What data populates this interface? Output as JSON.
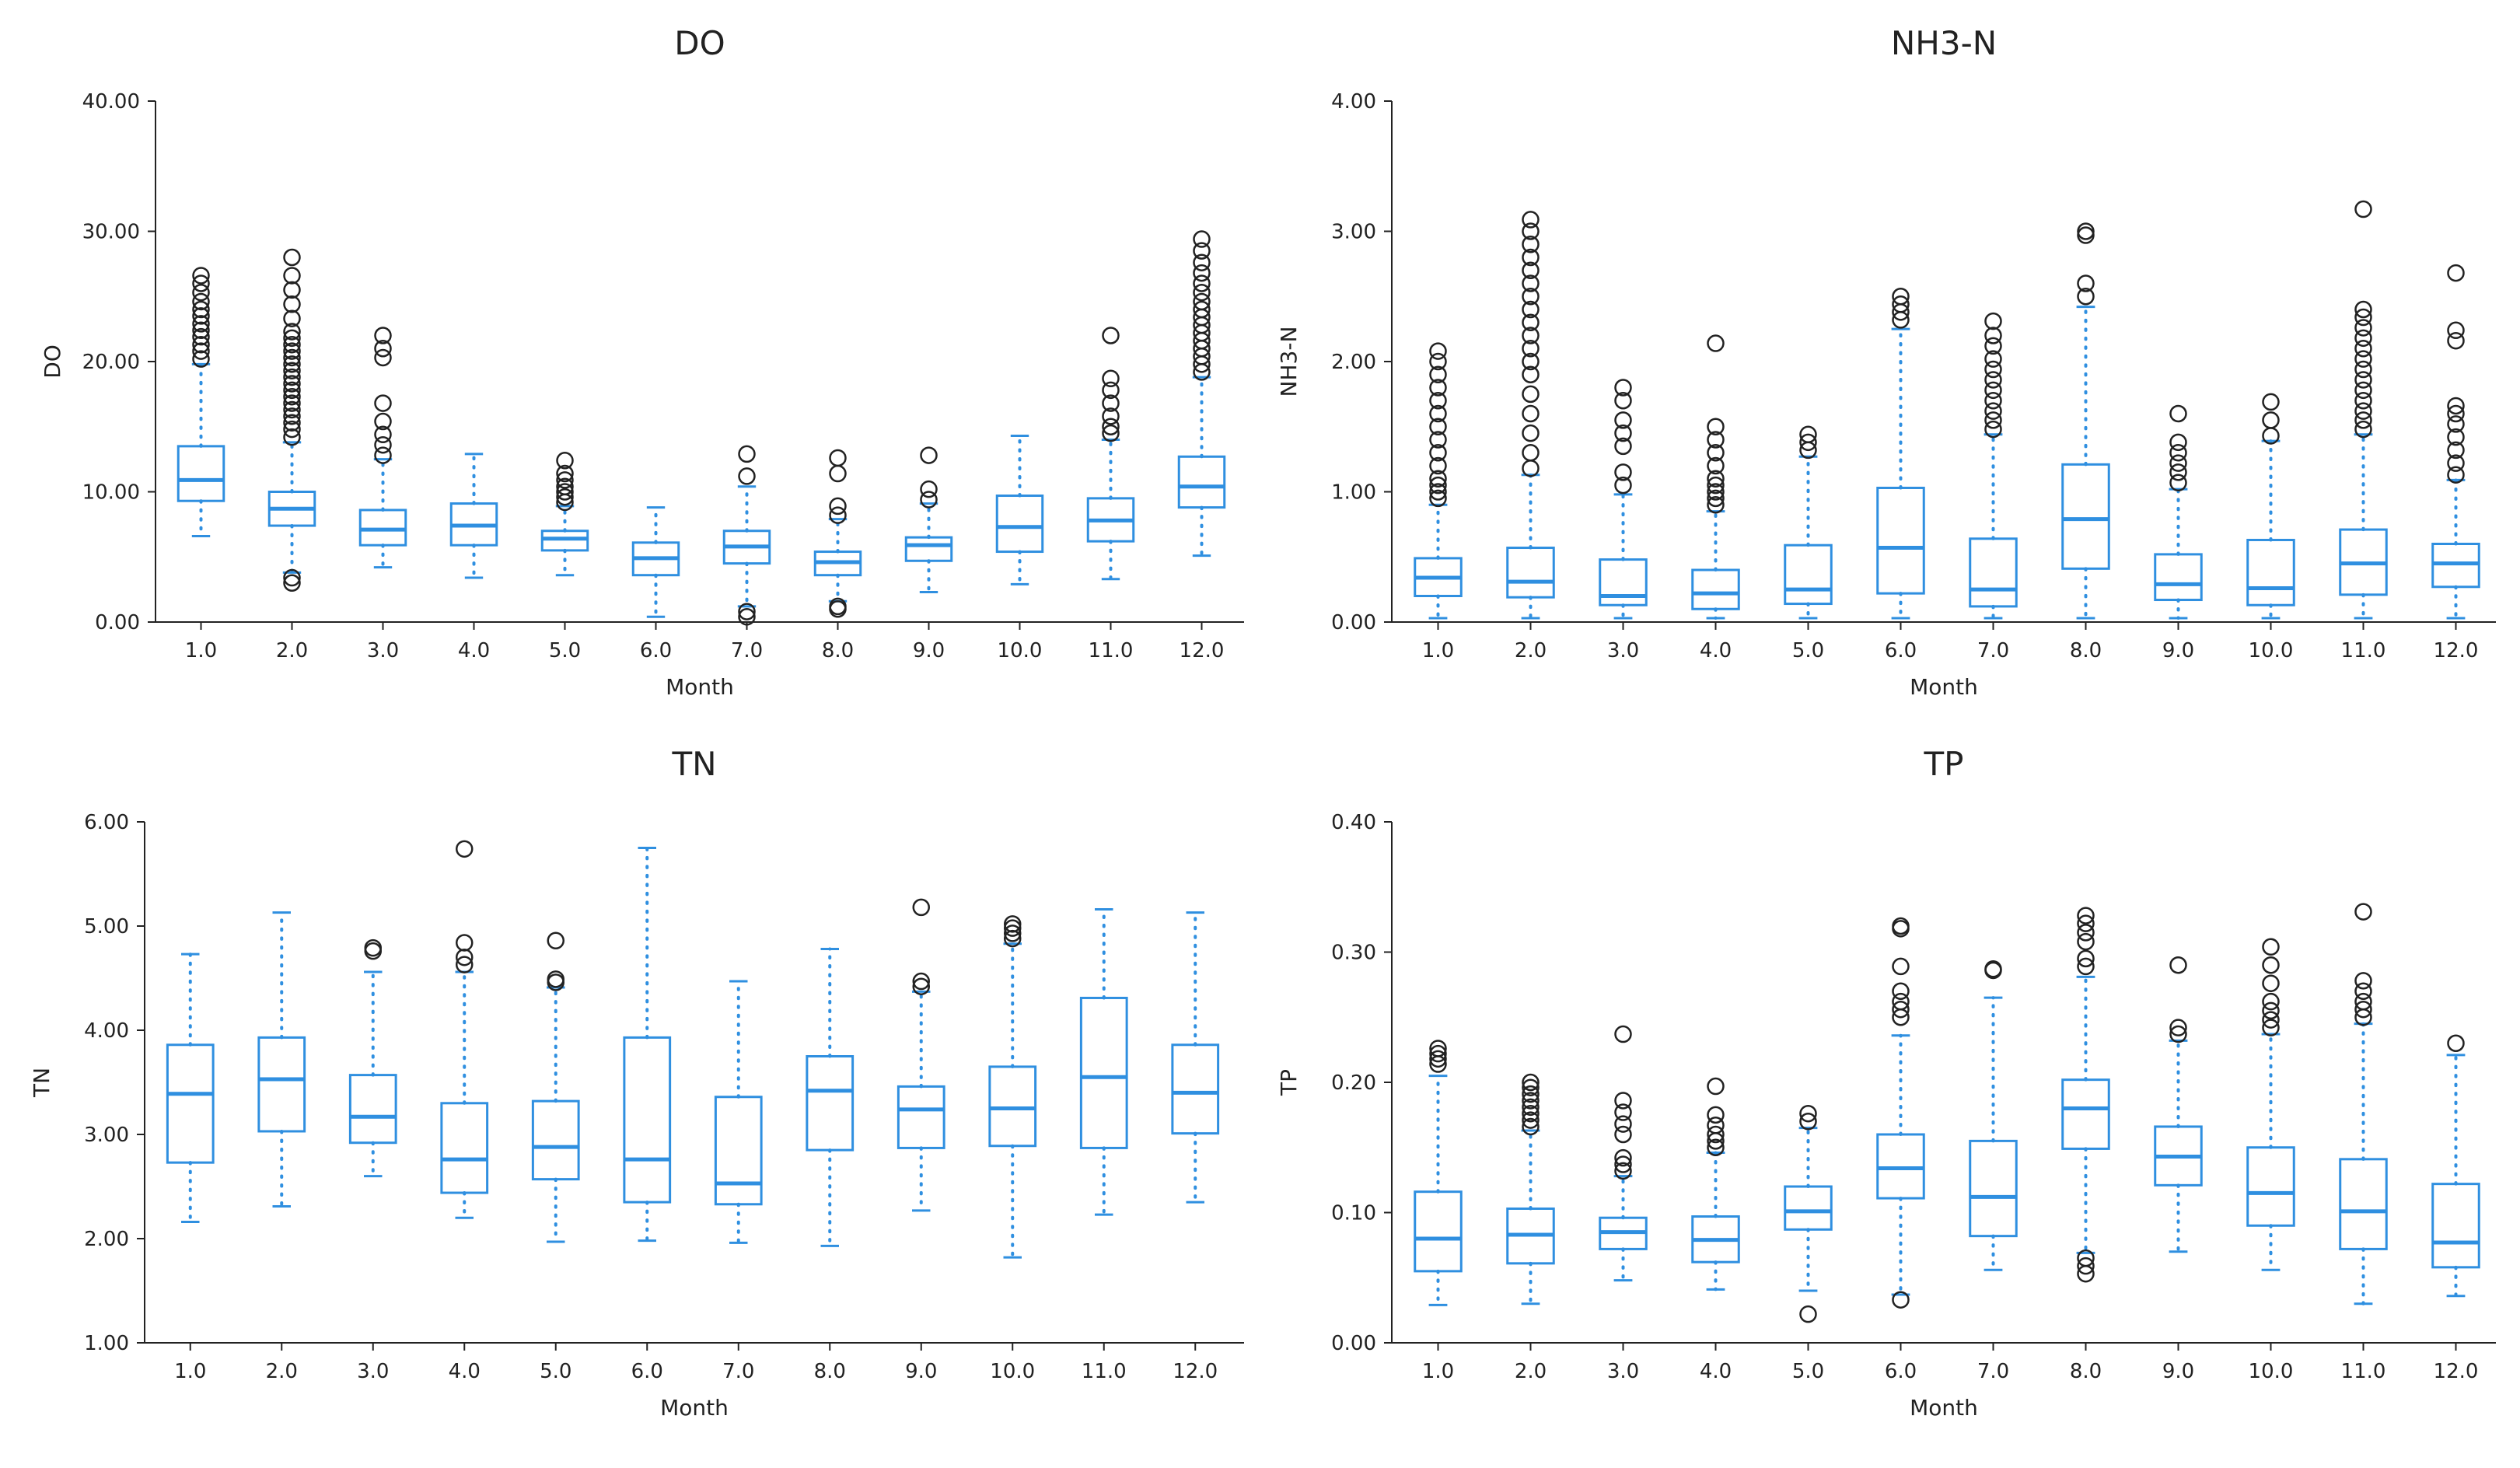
{
  "colors": {
    "box": "#2f8fe0",
    "flier": "#222222",
    "axis": "#222222",
    "background": "#ffffff"
  },
  "chart_data": [
    {
      "type": "box",
      "title": "DO",
      "xlabel": "Month",
      "ylabel": "DO",
      "categories": [
        "1.0",
        "2.0",
        "3.0",
        "4.0",
        "5.0",
        "6.0",
        "7.0",
        "8.0",
        "9.0",
        "10.0",
        "11.0",
        "12.0"
      ],
      "ylim": [
        0,
        40
      ],
      "yticks": [
        "0.00",
        "10.00",
        "20.00",
        "30.00",
        "40.00"
      ],
      "boxes": [
        {
          "whislo": 6.6,
          "q1": 9.3,
          "med": 10.9,
          "q3": 13.5,
          "whishi": 19.8,
          "fliers": [
            20.2,
            20.8,
            21.3,
            21.9,
            22.4,
            22.9,
            23.5,
            24.0,
            24.6,
            25.3,
            26.0,
            26.6
          ]
        },
        {
          "whislo": 3.8,
          "q1": 7.4,
          "med": 8.7,
          "q3": 10.0,
          "whishi": 13.8,
          "fliers": [
            3.0,
            3.4,
            14.2,
            14.8,
            15.3,
            15.8,
            16.3,
            16.8,
            17.3,
            17.8,
            18.3,
            18.8,
            19.3,
            19.8,
            20.3,
            20.8,
            21.3,
            21.8,
            22.3,
            23.3,
            24.4,
            25.5,
            26.6,
            28.0
          ]
        },
        {
          "whislo": 4.2,
          "q1": 5.9,
          "med": 7.1,
          "q3": 8.6,
          "whishi": 12.5,
          "fliers": [
            12.8,
            13.6,
            14.4,
            15.4,
            16.8,
            20.3,
            21.0,
            22.0
          ]
        },
        {
          "whislo": 3.4,
          "q1": 5.9,
          "med": 7.4,
          "q3": 9.1,
          "whishi": 12.9,
          "fliers": []
        },
        {
          "whislo": 3.6,
          "q1": 5.5,
          "med": 6.4,
          "q3": 7.0,
          "whishi": 8.9,
          "fliers": [
            9.2,
            9.6,
            10.0,
            10.4,
            10.9,
            11.4,
            12.4
          ]
        },
        {
          "whislo": 0.4,
          "q1": 3.6,
          "med": 4.9,
          "q3": 6.1,
          "whishi": 8.8,
          "fliers": []
        },
        {
          "whislo": 1.2,
          "q1": 4.5,
          "med": 5.8,
          "q3": 7.0,
          "whishi": 10.4,
          "fliers": [
            0.4,
            0.8,
            11.2,
            12.9
          ]
        },
        {
          "whislo": 1.6,
          "q1": 3.6,
          "med": 4.6,
          "q3": 5.4,
          "whishi": 7.9,
          "fliers": [
            1.0,
            1.2,
            8.2,
            8.9,
            11.4,
            12.6
          ]
        },
        {
          "whislo": 2.3,
          "q1": 4.7,
          "med": 5.9,
          "q3": 6.5,
          "whishi": 9.1,
          "fliers": [
            9.4,
            10.2,
            12.8
          ]
        },
        {
          "whislo": 2.9,
          "q1": 5.4,
          "med": 7.3,
          "q3": 9.7,
          "whishi": 14.3,
          "fliers": []
        },
        {
          "whislo": 3.3,
          "q1": 6.2,
          "med": 7.8,
          "q3": 9.5,
          "whishi": 14.0,
          "fliers": [
            14.5,
            15.0,
            15.8,
            16.8,
            17.8,
            18.7,
            22.0
          ]
        },
        {
          "whislo": 5.1,
          "q1": 8.8,
          "med": 10.4,
          "q3": 12.7,
          "whishi": 18.8,
          "fliers": [
            19.2,
            19.8,
            20.4,
            21.0,
            21.6,
            22.2,
            22.8,
            23.4,
            24.0,
            24.6,
            25.3,
            26.0,
            26.8,
            27.6,
            28.5,
            29.4
          ]
        }
      ]
    },
    {
      "type": "box",
      "title": "NH3-N",
      "xlabel": "Month",
      "ylabel": "NH3-N",
      "categories": [
        "1.0",
        "2.0",
        "3.0",
        "4.0",
        "5.0",
        "6.0",
        "7.0",
        "8.0",
        "9.0",
        "10.0",
        "11.0",
        "12.0"
      ],
      "ylim": [
        0,
        4
      ],
      "yticks": [
        "0.00",
        "1.00",
        "2.00",
        "3.00",
        "4.00"
      ],
      "boxes": [
        {
          "whislo": 0.03,
          "q1": 0.2,
          "med": 0.34,
          "q3": 0.49,
          "whishi": 0.9,
          "fliers": [
            0.95,
            1.0,
            1.05,
            1.1,
            1.2,
            1.3,
            1.4,
            1.5,
            1.6,
            1.7,
            1.8,
            1.9,
            2.0,
            2.08
          ]
        },
        {
          "whislo": 0.03,
          "q1": 0.19,
          "med": 0.31,
          "q3": 0.57,
          "whishi": 1.13,
          "fliers": [
            1.18,
            1.3,
            1.45,
            1.6,
            1.75,
            1.9,
            2.0,
            2.1,
            2.2,
            2.3,
            2.4,
            2.5,
            2.6,
            2.7,
            2.8,
            2.9,
            3.0,
            3.09
          ]
        },
        {
          "whislo": 0.03,
          "q1": 0.13,
          "med": 0.2,
          "q3": 0.48,
          "whishi": 0.98,
          "fliers": [
            1.05,
            1.15,
            1.35,
            1.45,
            1.55,
            1.7,
            1.8
          ]
        },
        {
          "whislo": 0.03,
          "q1": 0.1,
          "med": 0.22,
          "q3": 0.4,
          "whishi": 0.85,
          "fliers": [
            0.9,
            0.95,
            1.0,
            1.05,
            1.1,
            1.2,
            1.3,
            1.4,
            1.5,
            2.14
          ]
        },
        {
          "whislo": 0.03,
          "q1": 0.14,
          "med": 0.25,
          "q3": 0.59,
          "whishi": 1.27,
          "fliers": [
            1.32,
            1.38,
            1.44
          ]
        },
        {
          "whislo": 0.03,
          "q1": 0.22,
          "med": 0.57,
          "q3": 1.03,
          "whishi": 2.25,
          "fliers": [
            2.32,
            2.38,
            2.44,
            2.5
          ]
        },
        {
          "whislo": 0.03,
          "q1": 0.12,
          "med": 0.25,
          "q3": 0.64,
          "whishi": 1.44,
          "fliers": [
            1.48,
            1.55,
            1.62,
            1.7,
            1.78,
            1.86,
            1.94,
            2.02,
            2.12,
            2.2,
            2.31
          ]
        },
        {
          "whislo": 0.03,
          "q1": 0.41,
          "med": 0.79,
          "q3": 1.21,
          "whishi": 2.42,
          "fliers": [
            2.5,
            2.6,
            2.97,
            3.0
          ]
        },
        {
          "whislo": 0.03,
          "q1": 0.17,
          "med": 0.29,
          "q3": 0.52,
          "whishi": 1.02,
          "fliers": [
            1.07,
            1.15,
            1.22,
            1.3,
            1.38,
            1.6
          ]
        },
        {
          "whislo": 0.03,
          "q1": 0.13,
          "med": 0.26,
          "q3": 0.63,
          "whishi": 1.39,
          "fliers": [
            1.43,
            1.55,
            1.69
          ]
        },
        {
          "whislo": 0.03,
          "q1": 0.21,
          "med": 0.45,
          "q3": 0.71,
          "whishi": 1.44,
          "fliers": [
            1.48,
            1.55,
            1.62,
            1.7,
            1.78,
            1.86,
            1.94,
            2.02,
            2.1,
            2.18,
            2.26,
            2.34,
            2.4,
            3.17
          ]
        },
        {
          "whislo": 0.03,
          "q1": 0.27,
          "med": 0.45,
          "q3": 0.6,
          "whishi": 1.09,
          "fliers": [
            1.13,
            1.22,
            1.32,
            1.42,
            1.52,
            1.6,
            1.66,
            2.16,
            2.24,
            2.68
          ]
        }
      ]
    },
    {
      "type": "box",
      "title": "TN",
      "xlabel": "Month",
      "ylabel": "TN",
      "categories": [
        "1.0",
        "2.0",
        "3.0",
        "4.0",
        "5.0",
        "6.0",
        "7.0",
        "8.0",
        "9.0",
        "10.0",
        "11.0",
        "12.0"
      ],
      "ylim": [
        1,
        6
      ],
      "yticks": [
        "1.00",
        "2.00",
        "3.00",
        "4.00",
        "5.00",
        "6.00"
      ],
      "boxes": [
        {
          "whislo": 2.16,
          "q1": 2.73,
          "med": 3.39,
          "q3": 3.86,
          "whishi": 4.73,
          "fliers": []
        },
        {
          "whislo": 2.31,
          "q1": 3.03,
          "med": 3.53,
          "q3": 3.93,
          "whishi": 5.13,
          "fliers": []
        },
        {
          "whislo": 2.6,
          "q1": 2.92,
          "med": 3.17,
          "q3": 3.57,
          "whishi": 4.56,
          "fliers": [
            4.76,
            4.79
          ]
        },
        {
          "whislo": 2.2,
          "q1": 2.44,
          "med": 2.76,
          "q3": 3.3,
          "whishi": 4.56,
          "fliers": [
            4.63,
            4.7,
            4.84,
            5.74
          ]
        },
        {
          "whislo": 1.97,
          "q1": 2.57,
          "med": 2.88,
          "q3": 3.32,
          "whishi": 4.41,
          "fliers": [
            4.46,
            4.49,
            4.86
          ]
        },
        {
          "whislo": 1.98,
          "q1": 2.35,
          "med": 2.76,
          "q3": 3.93,
          "whishi": 5.75,
          "fliers": []
        },
        {
          "whislo": 1.96,
          "q1": 2.33,
          "med": 2.53,
          "q3": 3.36,
          "whishi": 4.47,
          "fliers": []
        },
        {
          "whislo": 1.93,
          "q1": 2.85,
          "med": 3.42,
          "q3": 3.75,
          "whishi": 4.78,
          "fliers": []
        },
        {
          "whislo": 2.27,
          "q1": 2.87,
          "med": 3.24,
          "q3": 3.46,
          "whishi": 4.37,
          "fliers": [
            4.42,
            4.47,
            5.18
          ]
        },
        {
          "whislo": 1.82,
          "q1": 2.89,
          "med": 3.25,
          "q3": 3.65,
          "whishi": 4.83,
          "fliers": [
            4.88,
            4.93,
            4.98,
            5.02
          ]
        },
        {
          "whislo": 2.23,
          "q1": 2.87,
          "med": 3.55,
          "q3": 4.31,
          "whishi": 5.16,
          "fliers": []
        },
        {
          "whislo": 2.35,
          "q1": 3.01,
          "med": 3.4,
          "q3": 3.86,
          "whishi": 5.13,
          "fliers": []
        }
      ]
    },
    {
      "type": "box",
      "title": "TP",
      "xlabel": "Month",
      "ylabel": "TP",
      "categories": [
        "1.0",
        "2.0",
        "3.0",
        "4.0",
        "5.0",
        "6.0",
        "7.0",
        "8.0",
        "9.0",
        "10.0",
        "11.0",
        "12.0"
      ],
      "ylim": [
        0,
        0.4
      ],
      "yticks": [
        "0.00",
        "0.10",
        "0.20",
        "0.30",
        "0.40"
      ],
      "boxes": [
        {
          "whislo": 0.029,
          "q1": 0.055,
          "med": 0.08,
          "q3": 0.116,
          "whishi": 0.205,
          "fliers": [
            0.214,
            0.218,
            0.222,
            0.226
          ]
        },
        {
          "whislo": 0.03,
          "q1": 0.061,
          "med": 0.083,
          "q3": 0.103,
          "whishi": 0.163,
          "fliers": [
            0.166,
            0.171,
            0.176,
            0.181,
            0.186,
            0.191,
            0.196,
            0.2
          ]
        },
        {
          "whislo": 0.048,
          "q1": 0.072,
          "med": 0.085,
          "q3": 0.096,
          "whishi": 0.128,
          "fliers": [
            0.132,
            0.137,
            0.142,
            0.16,
            0.168,
            0.177,
            0.186,
            0.237
          ]
        },
        {
          "whislo": 0.041,
          "q1": 0.062,
          "med": 0.079,
          "q3": 0.097,
          "whishi": 0.146,
          "fliers": [
            0.15,
            0.155,
            0.16,
            0.167,
            0.175,
            0.197
          ]
        },
        {
          "whislo": 0.04,
          "q1": 0.087,
          "med": 0.101,
          "q3": 0.12,
          "whishi": 0.165,
          "fliers": [
            0.022,
            0.17,
            0.176
          ]
        },
        {
          "whislo": 0.037,
          "q1": 0.111,
          "med": 0.134,
          "q3": 0.16,
          "whishi": 0.236,
          "fliers": [
            0.033,
            0.25,
            0.256,
            0.262,
            0.27,
            0.289,
            0.318,
            0.32
          ]
        },
        {
          "whislo": 0.056,
          "q1": 0.082,
          "med": 0.112,
          "q3": 0.155,
          "whishi": 0.265,
          "fliers": [
            0.286,
            0.287
          ]
        },
        {
          "whislo": 0.069,
          "q1": 0.149,
          "med": 0.18,
          "q3": 0.202,
          "whishi": 0.281,
          "fliers": [
            0.053,
            0.059,
            0.065,
            0.289,
            0.295,
            0.308,
            0.315,
            0.322,
            0.328
          ]
        },
        {
          "whislo": 0.07,
          "q1": 0.121,
          "med": 0.143,
          "q3": 0.166,
          "whishi": 0.232,
          "fliers": [
            0.237,
            0.242,
            0.29
          ]
        },
        {
          "whislo": 0.056,
          "q1": 0.09,
          "med": 0.115,
          "q3": 0.15,
          "whishi": 0.237,
          "fliers": [
            0.242,
            0.248,
            0.255,
            0.262,
            0.276,
            0.29,
            0.304
          ]
        },
        {
          "whislo": 0.03,
          "q1": 0.072,
          "med": 0.101,
          "q3": 0.141,
          "whishi": 0.245,
          "fliers": [
            0.25,
            0.256,
            0.262,
            0.27,
            0.278,
            0.331
          ]
        },
        {
          "whislo": 0.036,
          "q1": 0.058,
          "med": 0.077,
          "q3": 0.122,
          "whishi": 0.221,
          "fliers": [
            0.23
          ]
        }
      ]
    }
  ]
}
